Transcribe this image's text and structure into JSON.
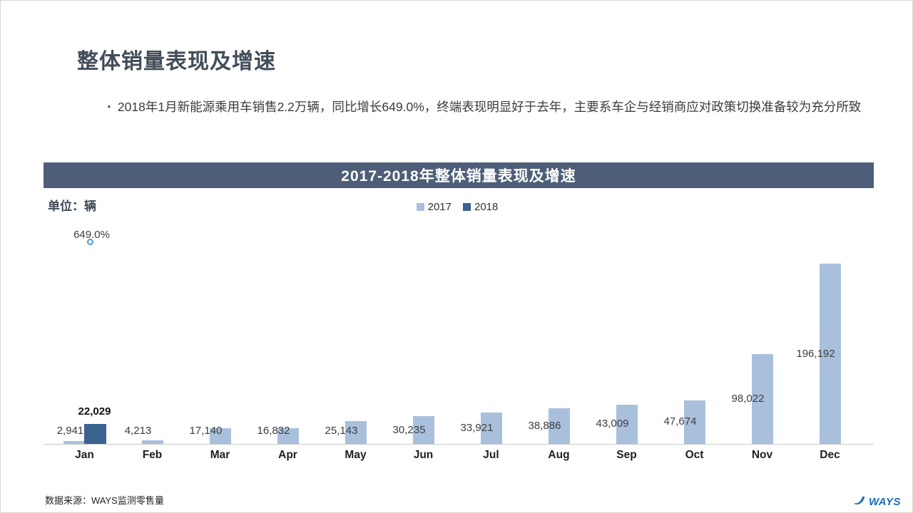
{
  "slide": {
    "title": "整体销量表现及增速",
    "bullet": "2018年1月新能源乘用车销售2.2万辆，同比增长649.0%，终端表现明显好于去年，主要系车企与经销商应对政策切换准备较为充分所致",
    "source_note": "数据来源：WAYS监测零售量",
    "logo_text": "WAYS"
  },
  "chart_data": {
    "type": "bar",
    "title": "2017-2018年整体销量表现及增速",
    "unit_label": "单位：辆",
    "legend_position": "top",
    "grid": false,
    "ylim": [
      0,
      200000
    ],
    "categories": [
      "Jan",
      "Feb",
      "Mar",
      "Apr",
      "May",
      "Jun",
      "Jul",
      "Aug",
      "Sep",
      "Oct",
      "Nov",
      "Dec"
    ],
    "series": [
      {
        "name": "2017",
        "color": "#a9c0dd",
        "values": [
          2941,
          4213,
          17140,
          16832,
          25143,
          30235,
          33921,
          38886,
          43009,
          47674,
          98022,
          196192
        ]
      },
      {
        "name": "2018",
        "color": "#3a648f",
        "values": [
          22029,
          null,
          null,
          null,
          null,
          null,
          null,
          null,
          null,
          null,
          null,
          null
        ]
      }
    ],
    "growth_points": [
      {
        "category": "Jan",
        "label": "649.0%",
        "value": 649.0
      }
    ],
    "marker_color": "#4a9bd5"
  }
}
